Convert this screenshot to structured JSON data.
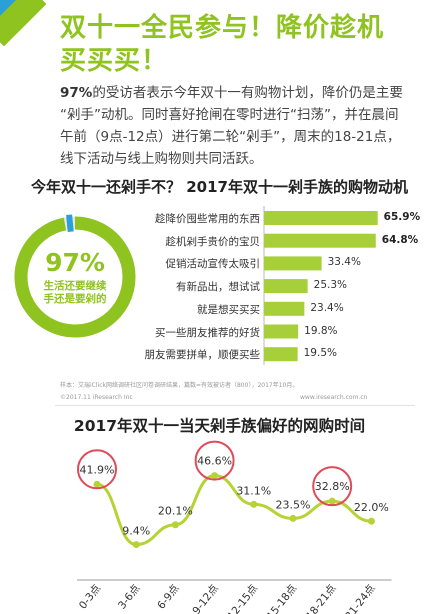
{
  "headline": "双十一全民参与！降价趁机买买买！",
  "paragraph": {
    "highlight": "97%",
    "text": "的受访者表示今年双十一有购物计划，降价仍是主要 “剁手”动机。同时喜好抢闸在零时进行“扫荡”，并在晨间午前（9点-12点）进行第二轮“剁手”，周末的18-21点，线下活动与线上购物则共同活跃。"
  },
  "section1_title": "今年双十一还剁手不？ 2017年双十一剁手族的购物动机",
  "donut": {
    "value": "97%",
    "fraction": 0.97,
    "caption_line1": "生活还要继续",
    "caption_line2": "手还是要剁的"
  },
  "note": "样本：艾瑞iClick网络调研社区问卷调研结果，篇数=有效被访者（800），2017年10月。",
  "footer": {
    "left": "©2017.11 iResearch Inc",
    "right": "www.iresearch.com.cn"
  },
  "section2_title": "2017年双十一当天剁手族偏好的网购时间",
  "colors": {
    "accent": "#8fc31f",
    "bar": "#a6cf3a",
    "line": "#b5d334",
    "circle": "#e04b5a",
    "blue": "#2a9fd8"
  },
  "chart_data": [
    {
      "type": "bar",
      "orientation": "horizontal",
      "title": "2017年双十一剁手族的购物动机",
      "categories": [
        "趁降价囤些常用的东西",
        "趁机剁手贵价的宝贝",
        "促销活动宣传太吸引",
        "有新品出，想试试",
        "就是想买买买",
        "买一些朋友推荐的好货",
        "朋友需要拼单，顺便买些"
      ],
      "values": [
        65.9,
        64.8,
        33.4,
        25.3,
        23.4,
        19.8,
        19.5
      ],
      "value_labels": [
        "65.9%",
        "64.8%",
        "33.4%",
        "25.3%",
        "23.4%",
        "19.8%",
        "19.5%"
      ],
      "xlim": [
        0,
        100
      ]
    },
    {
      "type": "line",
      "title": "2017年双十一当天剁手族偏好的网购时间",
      "categories": [
        "0-3点",
        "3-6点",
        "6-9点",
        "9-12点",
        "12-15点",
        "15-18点",
        "18-21点",
        "21-24点"
      ],
      "values": [
        41.9,
        9.4,
        20.1,
        46.6,
        31.1,
        23.5,
        32.8,
        22.0
      ],
      "value_labels": [
        "41.9%",
        "9.4%",
        "20.1%",
        "46.6%",
        "31.1%",
        "23.5%",
        "32.8%",
        "22.0%"
      ],
      "highlighted_indices": [
        0,
        3,
        6
      ],
      "ylim": [
        0,
        55
      ]
    }
  ]
}
